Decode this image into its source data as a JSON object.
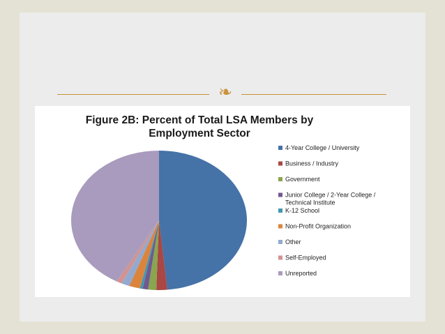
{
  "ornament": {
    "glyph_name": "fleuron-icon",
    "glyph": "❧",
    "color": "#c9913a"
  },
  "chart_data": {
    "type": "pie",
    "title": "Figure 2B: Percent of Total LSA Members by Employment Sector",
    "title_lines": [
      "Figure 2B: Percent of Total LSA Members by",
      "Employment Sector"
    ],
    "start_angle_deg": 0,
    "direction": "clockwise",
    "slices": [
      {
        "label": "4-Year College / University",
        "value": 48.5,
        "color": "#4572a7"
      },
      {
        "label": "Business / Industry",
        "value": 2.0,
        "color": "#aa4643"
      },
      {
        "label": "Government",
        "value": 1.5,
        "color": "#89a54e"
      },
      {
        "label": "Junior College / 2-Year College / Technical Institute",
        "value": 1.0,
        "color": "#71588f"
      },
      {
        "label": "K-12 School",
        "value": 0.5,
        "color": "#4198af"
      },
      {
        "label": "Non-Profit Organization",
        "value": 2.0,
        "color": "#db843d"
      },
      {
        "label": "Other",
        "value": 1.5,
        "color": "#93a9cf"
      },
      {
        "label": "Self-Employed",
        "value": 1.0,
        "color": "#d19392"
      },
      {
        "label": "Unreported",
        "value": 42.0,
        "color": "#a99bbd"
      }
    ],
    "legend_position": "right"
  }
}
